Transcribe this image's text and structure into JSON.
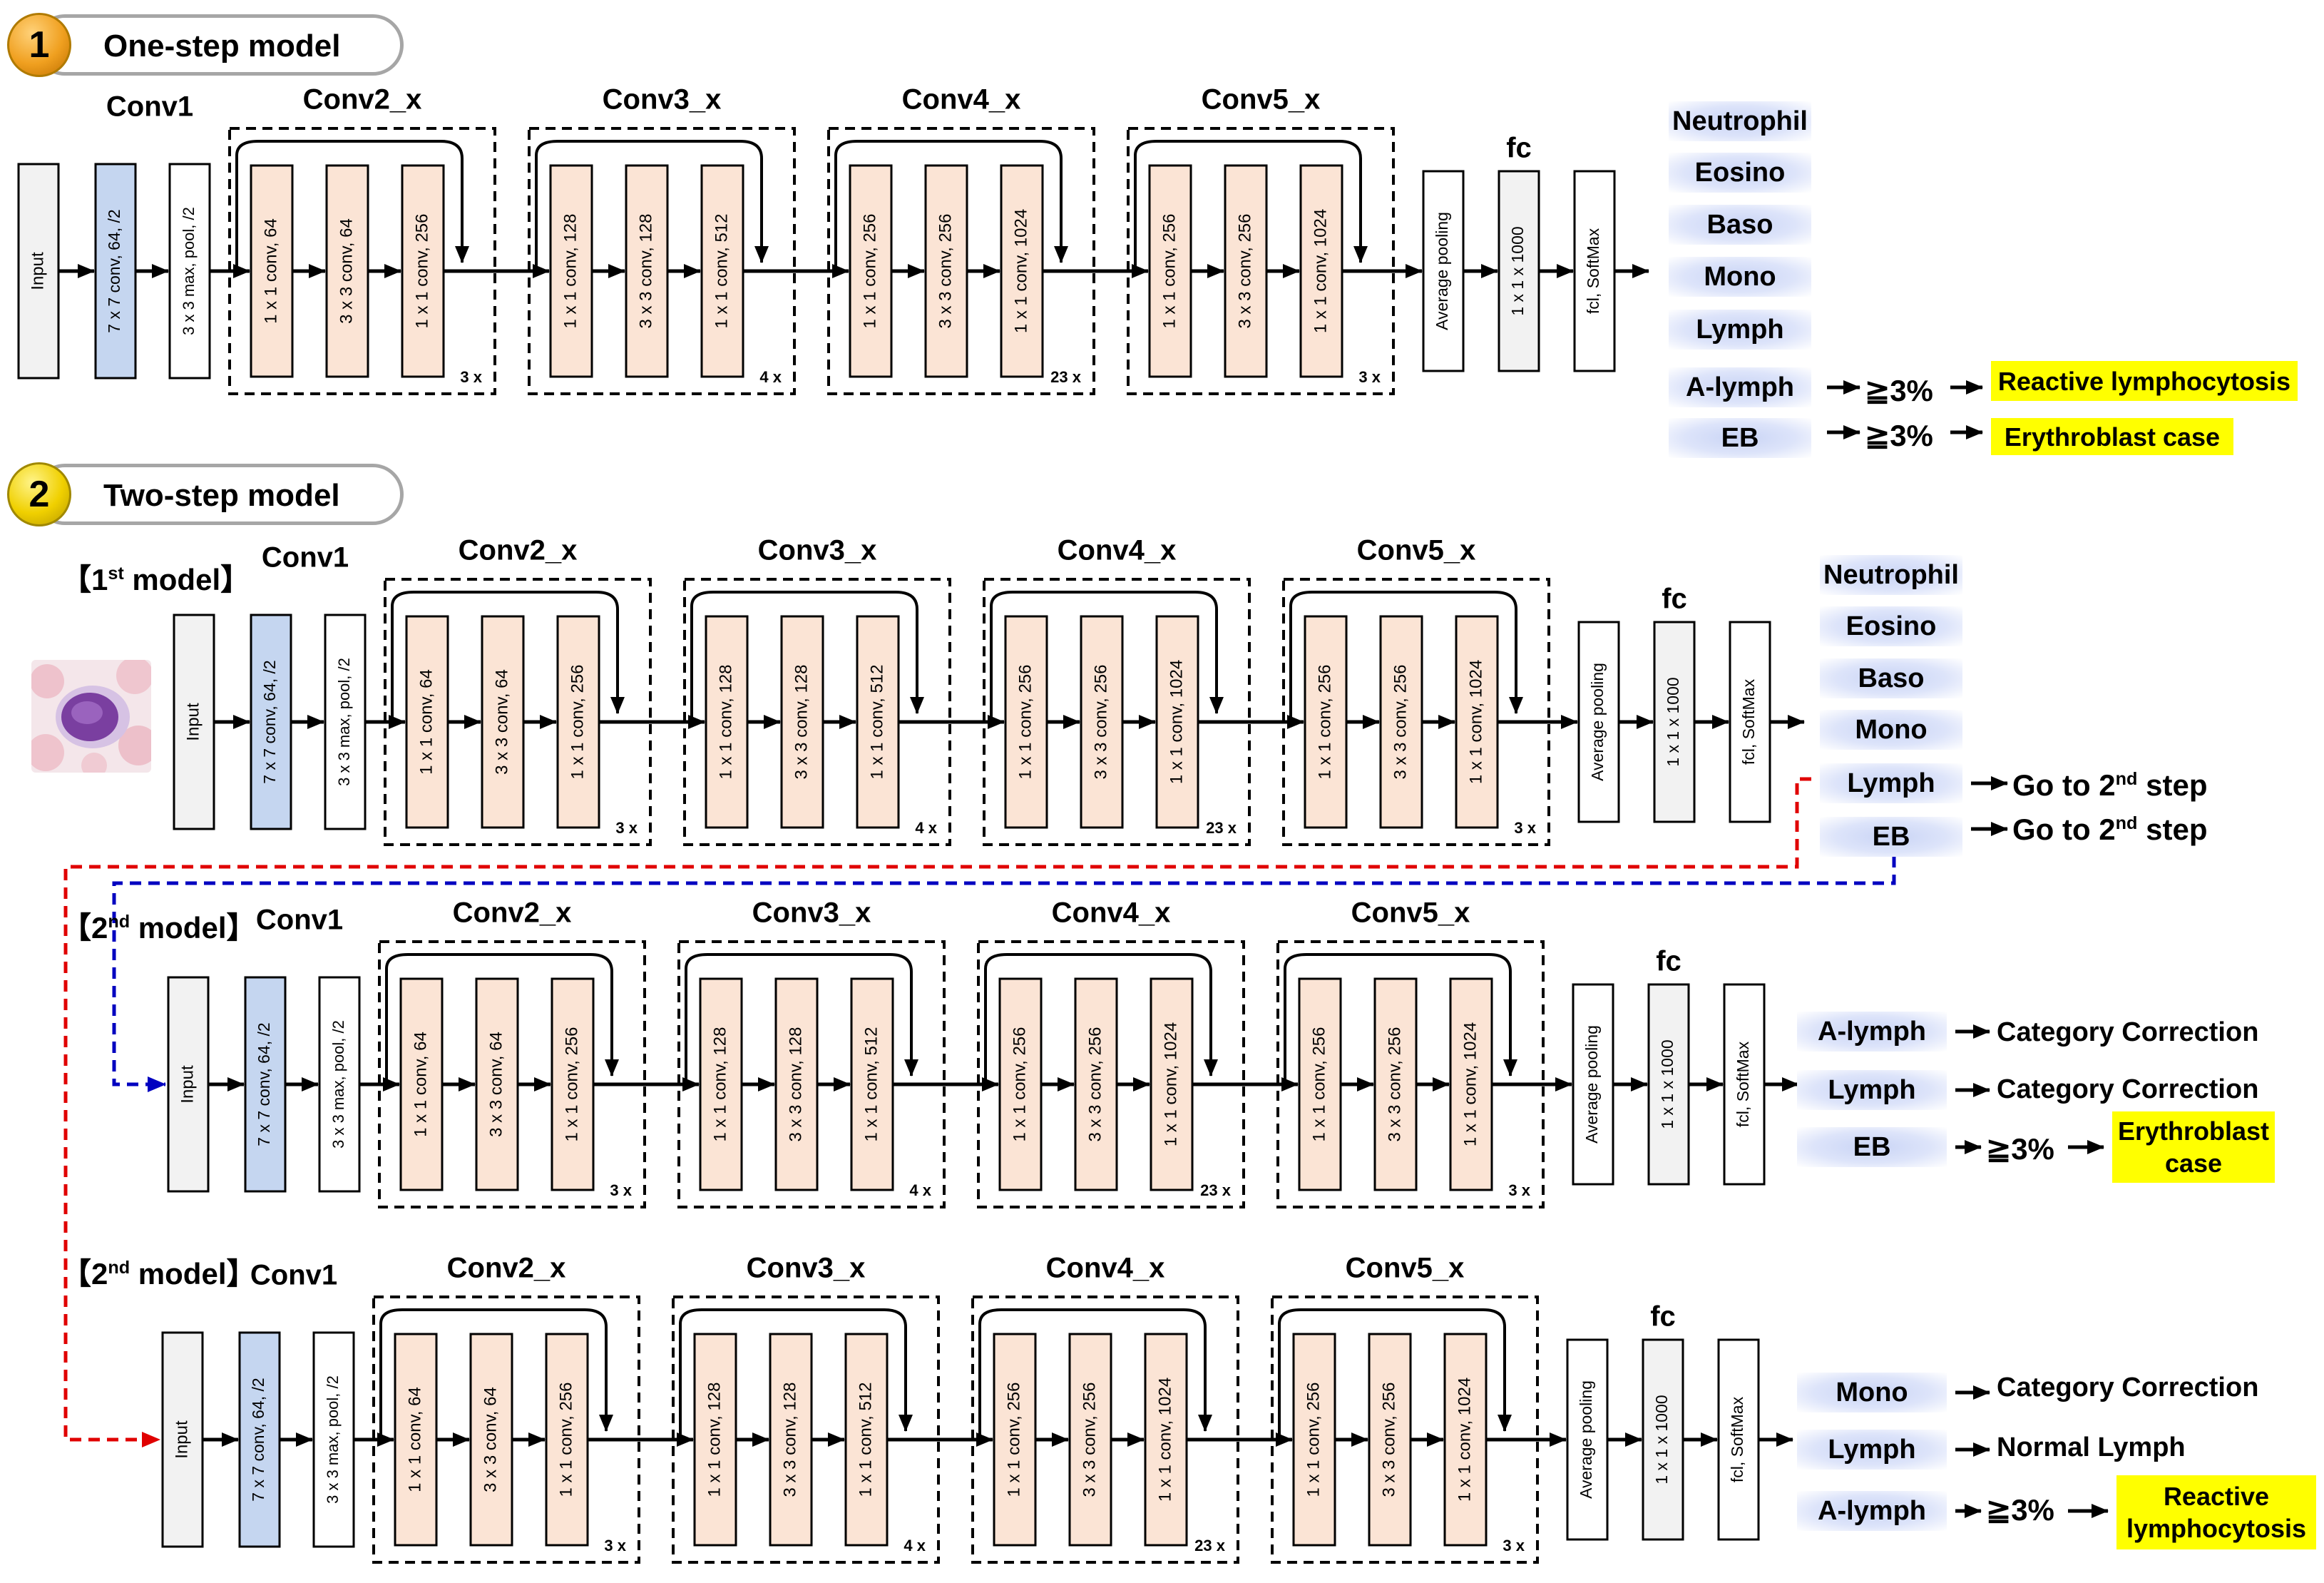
{
  "headers": {
    "one_step": {
      "number": "1",
      "title": "One-step model"
    },
    "two_step": {
      "number": "2",
      "title": "Two-step model"
    }
  },
  "model_labels": {
    "first_prefix": "【1",
    "first_sup": "st",
    "first_suffix": " model】",
    "second_prefix": "【2",
    "second_sup": "nd",
    "second_suffix": " model】"
  },
  "architecture": {
    "conv1_title": "Conv1",
    "fc_title": "fc",
    "input_label": "Input",
    "conv1_label": "7 x 7 conv, 64, /2",
    "pool_label": "3 x 3 max, pool, /2",
    "avgpool_label": "Average pooling",
    "fc_label": "1 x 1 x 1000",
    "softmax_label": "fcl, SoftMax",
    "stages": [
      {
        "title": "Conv2_x",
        "repeat": "3 x",
        "layers": [
          "1 x 1 conv, 64",
          "3 x 3 conv, 64",
          "1 x 1 conv, 256"
        ]
      },
      {
        "title": "Conv3_x",
        "repeat": "4 x",
        "layers": [
          "1 x 1 conv, 128",
          "3 x 3 conv, 128",
          "1 x 1 conv, 512"
        ]
      },
      {
        "title": "Conv4_x",
        "repeat": "23 x",
        "layers": [
          "1 x 1 conv, 256",
          "3 x 3 conv, 256",
          "1 x 1 conv, 1024"
        ]
      },
      {
        "title": "Conv5_x",
        "repeat": "3 x",
        "layers": [
          "1 x 1 conv, 256",
          "3 x 3 conv, 256",
          "1 x 1 conv, 1024"
        ]
      }
    ]
  },
  "one_step_classes": [
    "Neutrophil",
    "Eosino",
    "Baso",
    "Mono",
    "Lymph",
    "A-lymph",
    "EB"
  ],
  "first_model_classes": [
    "Neutrophil",
    "Eosino",
    "Baso",
    "Mono",
    "Lymph",
    "EB"
  ],
  "second_model_a_classes": [
    "A-lymph",
    "Lymph",
    "EB"
  ],
  "second_model_b_classes": [
    "Mono",
    "Lymph",
    "A-lymph"
  ],
  "outcomes": {
    "threshold": "≧3%",
    "reactive_lymphocytosis": "Reactive lymphocytosis",
    "erythroblast_case": "Erythroblast case",
    "erythroblast_line1": "Erythroblast",
    "erythroblast_line2": "case",
    "reactive_line1": "Reactive",
    "reactive_line2": "lymphocytosis",
    "category_correction": "Category Correction",
    "normal_lymph": "Normal Lymph",
    "go_prefix": "Go to 2",
    "go_sup": "nd",
    "go_suffix": " step"
  },
  "colors": {
    "input_fill": "#f2f2f2",
    "conv1_fill": "#c5d6f0",
    "layer_fill": "#fbe4d5",
    "fc_fill": "#f2f2f2",
    "red_dash": "#e00000",
    "blue_dash": "#0000c0",
    "highlight": "#ffff00"
  }
}
